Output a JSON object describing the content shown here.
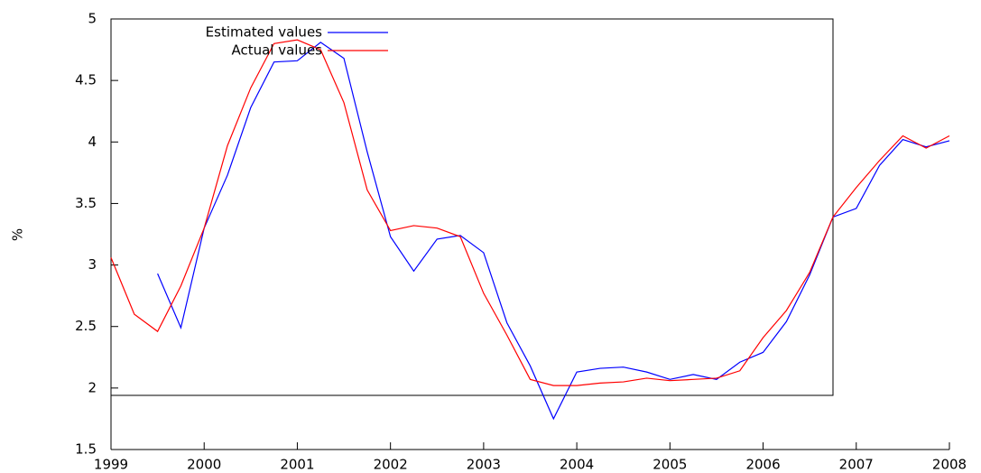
{
  "chart_data": {
    "type": "line",
    "ylabel": "%",
    "x": [
      1999,
      1999.25,
      1999.5,
      1999.75,
      2000,
      2000.25,
      2000.5,
      2000.75,
      2001,
      2001.25,
      2001.5,
      2001.75,
      2002,
      2002.25,
      2002.5,
      2002.75,
      2003,
      2003.25,
      2003.5,
      2003.75,
      2004,
      2004.25,
      2004.5,
      2004.75,
      2005,
      2005.25,
      2005.5,
      2005.75,
      2006,
      2006.25,
      2006.5,
      2006.75,
      2007,
      2007.25,
      2007.5,
      2007.75,
      2008
    ],
    "series": [
      {
        "name": "Estimated values",
        "color": "#0000ff",
        "values": [
          null,
          null,
          2.93,
          2.49,
          3.3,
          3.73,
          4.28,
          4.65,
          4.66,
          4.81,
          4.68,
          3.92,
          3.23,
          2.95,
          3.21,
          3.24,
          3.1,
          2.53,
          2.18,
          1.75,
          2.13,
          2.16,
          2.17,
          2.13,
          2.07,
          2.11,
          2.07,
          2.21,
          2.29,
          2.54,
          2.92,
          3.39,
          3.46,
          3.81,
          4.02,
          3.96,
          4.01
        ]
      },
      {
        "name": "Actual values",
        "color": "#ff0000",
        "values": [
          3.06,
          2.6,
          2.46,
          2.83,
          3.3,
          3.97,
          4.44,
          4.8,
          4.83,
          4.75,
          4.32,
          3.61,
          3.28,
          3.32,
          3.3,
          3.23,
          2.77,
          2.43,
          2.07,
          2.02,
          2.02,
          2.04,
          2.05,
          2.08,
          2.06,
          2.07,
          2.08,
          2.14,
          2.41,
          2.63,
          2.94,
          3.39,
          3.63,
          3.85,
          4.05,
          3.95,
          4.05
        ]
      }
    ],
    "xlim": [
      1999,
      2008
    ],
    "xticks": [
      1999,
      2000,
      2001,
      2002,
      2003,
      2004,
      2005,
      2006,
      2007,
      2008
    ],
    "ylim": [
      1.5,
      5
    ],
    "yticks": [
      1.5,
      2,
      2.5,
      3,
      3.5,
      4,
      4.5,
      5
    ],
    "legend": "upper left",
    "grid": false
  }
}
